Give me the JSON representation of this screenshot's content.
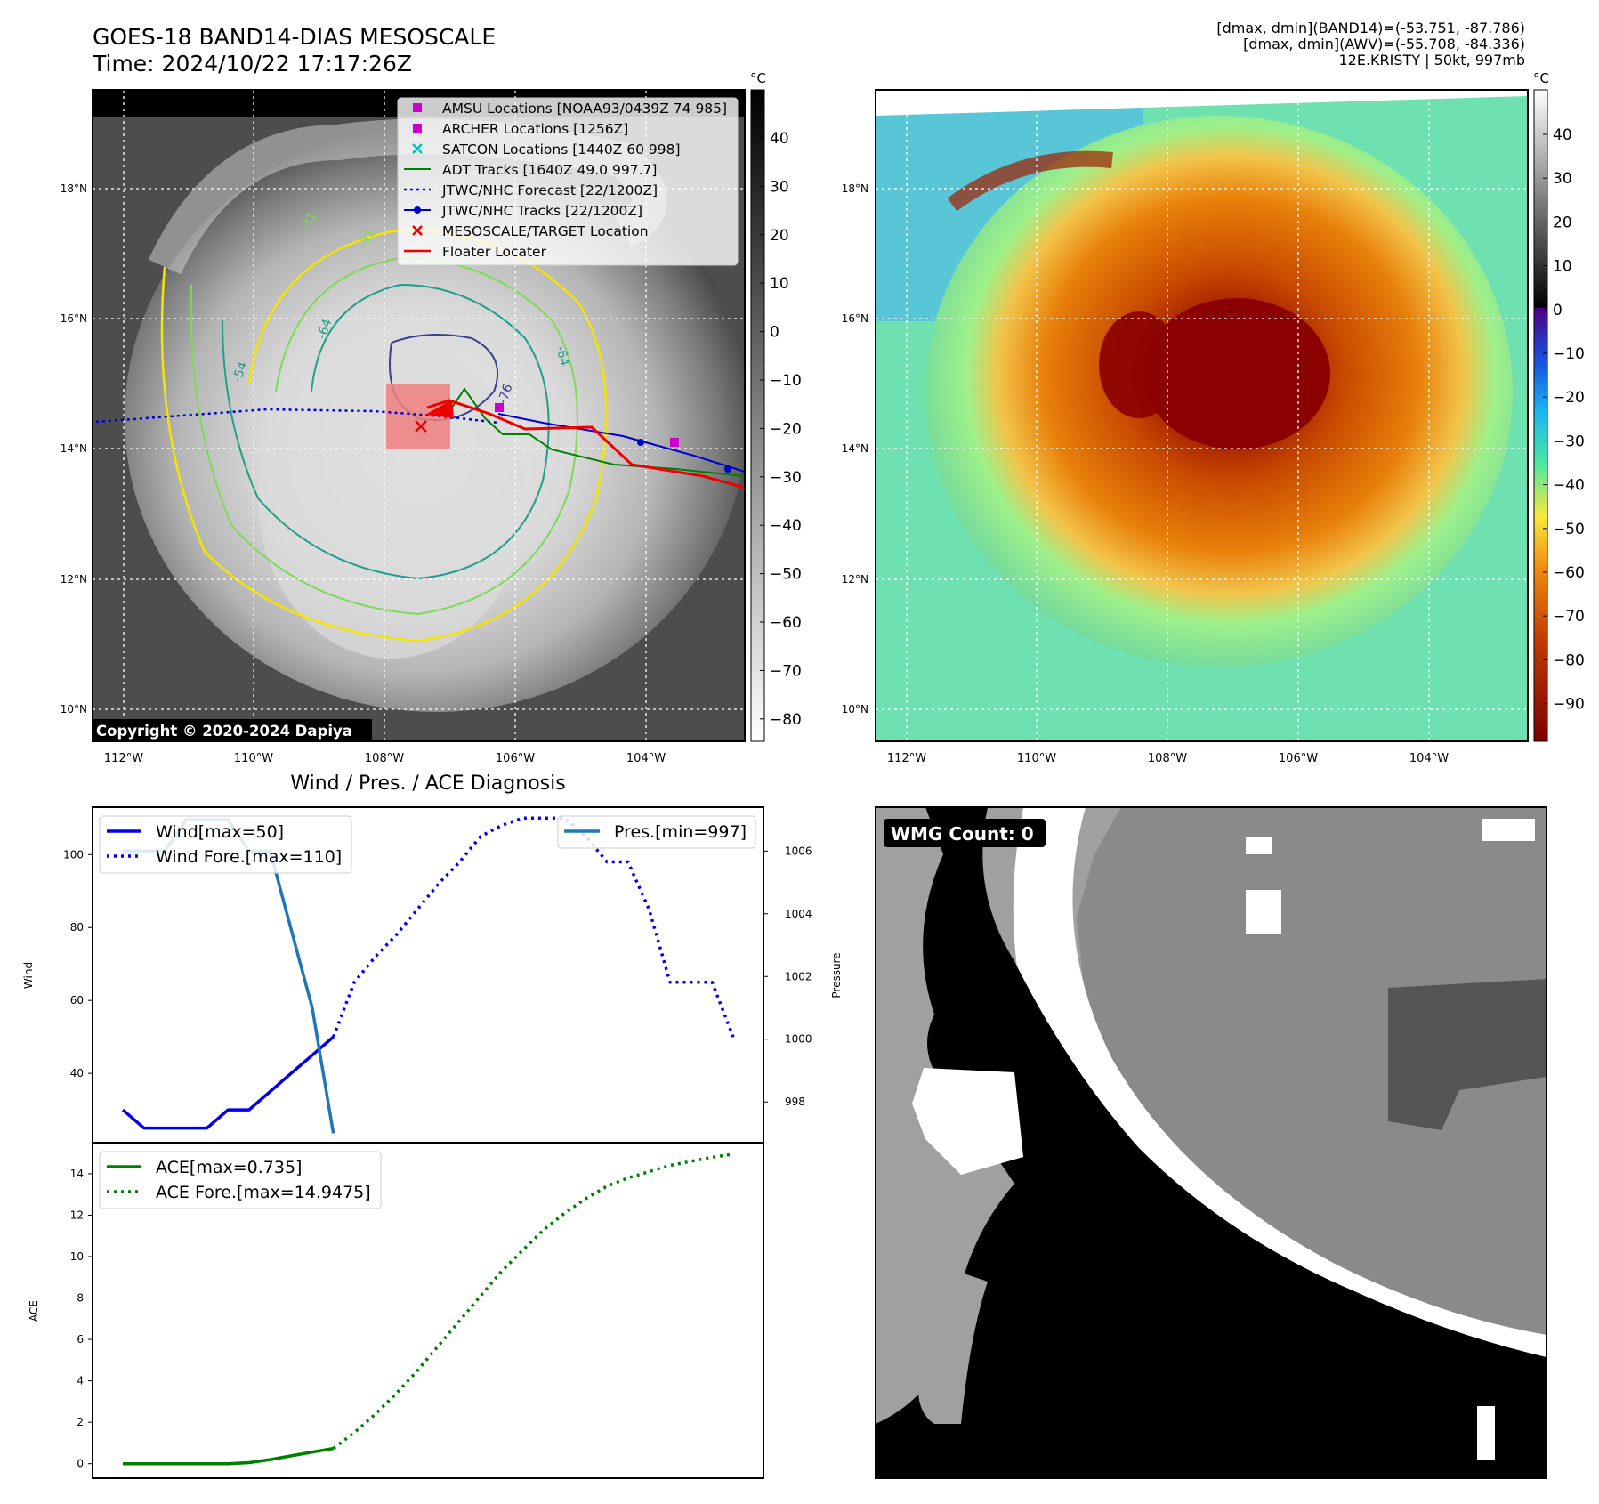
{
  "header": {
    "title_line1": "GOES-18 BAND14-DIAS MESOSCALE",
    "title_line2": "Time: 2024/10/22 17:17:26Z",
    "dmax_band14": "[dmax, dmin](BAND14)=(-53.751, -87.786)",
    "dmax_awv": "[dmax, dmin](AWV)=(-55.708, -84.336)",
    "storm_info": "12E.KRISTY | 50kt, 997mb"
  },
  "map": {
    "lat_labels": [
      "18°N",
      "16°N",
      "14°N",
      "12°N",
      "10°N"
    ],
    "lon_labels": [
      "112°W",
      "110°W",
      "108°W",
      "106°W",
      "104°W"
    ],
    "copyright": "Copyright © 2020-2024 Dapiya",
    "contour_labels": [
      "-64",
      "-76",
      "-31",
      "-31",
      "-64",
      "-54"
    ],
    "legend": [
      {
        "label": "AMSU Locations [NOAA93/0439Z 74 985]",
        "color": "#cc00cc",
        "marker": "square"
      },
      {
        "label": "ARCHER Locations [1256Z]",
        "color": "#cc00cc",
        "marker": "square"
      },
      {
        "label": "SATCON Locations [1440Z 60 998]",
        "color": "#00bcbc",
        "marker": "x"
      },
      {
        "label": "ADT Tracks [1640Z 49.0 997.7]",
        "color": "#008000",
        "marker": "line"
      },
      {
        "label": "JTWC/NHC Forecast [22/1200Z]",
        "color": "#0000cc",
        "marker": "dotted"
      },
      {
        "label": "JTWC/NHC Tracks [22/1200Z]",
        "color": "#0000cc",
        "marker": "dotline"
      },
      {
        "label": "MESOSCALE/TARGET Location",
        "color": "#ee0000",
        "marker": "x"
      },
      {
        "label": "Floater Locater",
        "color": "#ee0000",
        "marker": "line"
      }
    ]
  },
  "colorbar_gray": {
    "unit": "°C",
    "ticks": [
      "40",
      "30",
      "20",
      "10",
      "0",
      "−10",
      "−20",
      "−30",
      "−40",
      "−50",
      "−60",
      "−70",
      "−80"
    ]
  },
  "colorbar_awv": {
    "unit": "°C",
    "ticks": [
      "40",
      "30",
      "20",
      "10",
      "0",
      "−10",
      "−20",
      "−30",
      "−40",
      "−50",
      "−60",
      "−70",
      "−80",
      "−90"
    ]
  },
  "wmg": {
    "label": "WMG Count: 0"
  },
  "chart_data": [
    {
      "type": "line",
      "title": "Wind / Pres. / ACE Diagnosis",
      "ylabel": "Wind",
      "y2label": "Pressure",
      "ylim": [
        21,
        113
      ],
      "y2lim": [
        996.7,
        1007.4
      ],
      "yticks": [
        40,
        60,
        80,
        100
      ],
      "y2ticks": [
        998,
        1000,
        1002,
        1004,
        1006
      ],
      "x_index_range": [
        0,
        29
      ],
      "series": [
        {
          "name": "Wind[max=50]",
          "axis": "left",
          "style": "solid",
          "color": "#0000ee",
          "x": [
            0,
            1,
            2,
            3,
            4,
            5,
            6,
            7,
            8,
            9,
            10
          ],
          "values": [
            30,
            25,
            25,
            25,
            25,
            30,
            30,
            35,
            40,
            45,
            50
          ]
        },
        {
          "name": "Wind Fore.[max=110]",
          "axis": "left",
          "style": "dotted",
          "color": "#0000ee",
          "x": [
            10,
            11,
            12,
            13,
            14,
            15,
            16,
            17,
            18,
            19,
            20,
            21,
            22,
            23,
            24,
            25,
            26,
            27,
            28,
            29
          ],
          "values": [
            50,
            65,
            72,
            78,
            85,
            92,
            98,
            105,
            108,
            110,
            110,
            110,
            105,
            98,
            98,
            85,
            65,
            65,
            65,
            50
          ]
        },
        {
          "name": "Pres.[min=997]",
          "axis": "right",
          "style": "solid",
          "color": "#1f77b4",
          "x": [
            0,
            1,
            2,
            3,
            4,
            5,
            6,
            7,
            8,
            9,
            10
          ],
          "values": [
            1006.0,
            1006.0,
            1006.0,
            1007.0,
            1007.0,
            1007.0,
            1006.0,
            1006.0,
            1003.5,
            1001.0,
            997.0
          ]
        }
      ]
    },
    {
      "type": "line",
      "ylabel": "ACE",
      "ylim": [
        -0.7,
        15.5
      ],
      "yticks": [
        0,
        2,
        4,
        6,
        8,
        10,
        12,
        14
      ],
      "x_index_range": [
        0,
        29
      ],
      "series": [
        {
          "name": "ACE[max=0.735]",
          "style": "solid",
          "color": "#008000",
          "x": [
            0,
            1,
            2,
            3,
            4,
            5,
            6,
            7,
            8,
            9,
            10
          ],
          "values": [
            0,
            0,
            0,
            0,
            0,
            0,
            0.05,
            0.2,
            0.38,
            0.56,
            0.735
          ]
        },
        {
          "name": "ACE Fore.[max=14.9475]",
          "style": "dotted",
          "color": "#008000",
          "x": [
            10,
            11,
            12,
            13,
            14,
            15,
            16,
            17,
            18,
            19,
            20,
            21,
            22,
            23,
            24,
            25,
            26,
            27,
            28,
            29
          ],
          "values": [
            0.735,
            1.5,
            2.4,
            3.4,
            4.5,
            5.7,
            6.9,
            8.1,
            9.3,
            10.3,
            11.3,
            12.1,
            12.8,
            13.4,
            13.8,
            14.1,
            14.4,
            14.6,
            14.8,
            14.9475
          ]
        }
      ]
    }
  ]
}
